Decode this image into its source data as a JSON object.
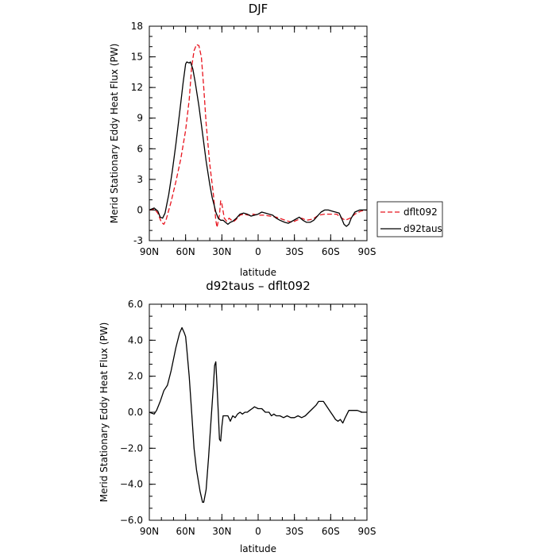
{
  "chart_data": [
    {
      "type": "line",
      "title": "DJF",
      "xlabel": "latitude",
      "ylabel": "Merid Stationary Eddy Heat Flux (PW)",
      "xlim": [
        90,
        -90
      ],
      "ylim": [
        -3,
        18
      ],
      "x_ticks": [
        90,
        60,
        30,
        0,
        -30,
        -60,
        -90
      ],
      "x_tick_labels": [
        "90N",
        "60N",
        "30N",
        "0",
        "30S",
        "60S",
        "90S"
      ],
      "y_ticks": [
        -3,
        0,
        3,
        6,
        9,
        12,
        15,
        18
      ],
      "y_tick_labels": [
        "-3",
        "0",
        "3",
        "6",
        "9",
        "12",
        "15",
        "18"
      ],
      "grid": false,
      "legend_position": "right",
      "series": [
        {
          "name": "dflt092",
          "color": "#e8141e",
          "style": "dashed",
          "points": [
            [
              90,
              0
            ],
            [
              86,
              0.1
            ],
            [
              83,
              -0.3
            ],
            [
              80,
              -1.2
            ],
            [
              78,
              -1.4
            ],
            [
              76,
              -0.9
            ],
            [
              72,
              0.8
            ],
            [
              68,
              2.8
            ],
            [
              64,
              5.0
            ],
            [
              60,
              7.8
            ],
            [
              57,
              10.8
            ],
            [
              55,
              14.0
            ],
            [
              53,
              15.6
            ],
            [
              51,
              16.2
            ],
            [
              49,
              16.1
            ],
            [
              47,
              15.0
            ],
            [
              45,
              12.0
            ],
            [
              43,
              8.5
            ],
            [
              40,
              4.5
            ],
            [
              37,
              1.5
            ],
            [
              35,
              -1.0
            ],
            [
              34,
              -1.7
            ],
            [
              32,
              -0.5
            ],
            [
              31,
              0.9
            ],
            [
              30,
              0.6
            ],
            [
              28,
              -0.8
            ],
            [
              26,
              -1.1
            ],
            [
              24,
              -0.8
            ],
            [
              22,
              -1.0
            ],
            [
              20,
              -1.1
            ],
            [
              18,
              -0.9
            ],
            [
              15,
              -0.5
            ],
            [
              12,
              -0.4
            ],
            [
              8,
              -0.5
            ],
            [
              4,
              -0.4
            ],
            [
              0,
              -0.5
            ],
            [
              -5,
              -0.5
            ],
            [
              -10,
              -0.6
            ],
            [
              -15,
              -0.7
            ],
            [
              -20,
              -0.9
            ],
            [
              -25,
              -1.1
            ],
            [
              -28,
              -1.2
            ],
            [
              -32,
              -1.0
            ],
            [
              -36,
              -0.8
            ],
            [
              -40,
              -1.0
            ],
            [
              -45,
              -0.9
            ],
            [
              -50,
              -0.5
            ],
            [
              -55,
              -0.4
            ],
            [
              -60,
              -0.4
            ],
            [
              -65,
              -0.4
            ],
            [
              -68,
              -0.7
            ],
            [
              -72,
              -1.0
            ],
            [
              -76,
              -0.8
            ],
            [
              -80,
              -0.4
            ],
            [
              -85,
              -0.1
            ],
            [
              -90,
              0
            ]
          ]
        },
        {
          "name": "d92taus",
          "color": "#000000",
          "style": "solid",
          "points": [
            [
              90,
              0
            ],
            [
              86,
              0.2
            ],
            [
              83,
              -0.1
            ],
            [
              81,
              -0.7
            ],
            [
              79,
              -0.8
            ],
            [
              77,
              -0.3
            ],
            [
              74,
              1.5
            ],
            [
              71,
              3.8
            ],
            [
              68,
              6.5
            ],
            [
              65,
              9.5
            ],
            [
              62,
              12.5
            ],
            [
              60,
              14.3
            ],
            [
              59,
              14.5
            ],
            [
              57,
              14.4
            ],
            [
              56,
              14.5
            ],
            [
              54,
              13.8
            ],
            [
              52,
              12.5
            ],
            [
              49,
              10.2
            ],
            [
              46,
              7.5
            ],
            [
              43,
              4.8
            ],
            [
              40,
              2.5
            ],
            [
              38,
              1.2
            ],
            [
              36,
              0.3
            ],
            [
              35,
              -0.2
            ],
            [
              33,
              -0.8
            ],
            [
              31,
              -1.0
            ],
            [
              29,
              -1.0
            ],
            [
              27,
              -1.2
            ],
            [
              25,
              -1.4
            ],
            [
              23,
              -1.2
            ],
            [
              21,
              -1.1
            ],
            [
              18,
              -0.8
            ],
            [
              15,
              -0.4
            ],
            [
              12,
              -0.3
            ],
            [
              9,
              -0.4
            ],
            [
              6,
              -0.6
            ],
            [
              3,
              -0.5
            ],
            [
              0,
              -0.4
            ],
            [
              -3,
              -0.2
            ],
            [
              -6,
              -0.3
            ],
            [
              -9,
              -0.4
            ],
            [
              -12,
              -0.5
            ],
            [
              -15,
              -0.8
            ],
            [
              -18,
              -1.0
            ],
            [
              -22,
              -1.2
            ],
            [
              -25,
              -1.3
            ],
            [
              -28,
              -1.1
            ],
            [
              -31,
              -0.9
            ],
            [
              -34,
              -0.7
            ],
            [
              -37,
              -1.0
            ],
            [
              -40,
              -1.2
            ],
            [
              -43,
              -1.2
            ],
            [
              -46,
              -1.0
            ],
            [
              -49,
              -0.6
            ],
            [
              -52,
              -0.2
            ],
            [
              -55,
              0.0
            ],
            [
              -58,
              0.0
            ],
            [
              -61,
              -0.1
            ],
            [
              -64,
              -0.2
            ],
            [
              -67,
              -0.3
            ],
            [
              -69,
              -0.8
            ],
            [
              -71,
              -1.4
            ],
            [
              -73,
              -1.6
            ],
            [
              -75,
              -1.4
            ],
            [
              -77,
              -0.8
            ],
            [
              -80,
              -0.2
            ],
            [
              -84,
              0.0
            ],
            [
              -90,
              0
            ]
          ]
        }
      ]
    },
    {
      "type": "line",
      "title": "d92taus – dflt092",
      "xlabel": "latitude",
      "ylabel": "Merid Stationary Eddy Heat Flux (PW)",
      "xlim": [
        90,
        -90
      ],
      "ylim": [
        -6,
        6
      ],
      "x_ticks": [
        90,
        60,
        30,
        0,
        -30,
        -60,
        -90
      ],
      "x_tick_labels": [
        "90N",
        "60N",
        "30N",
        "0",
        "30S",
        "60S",
        "90S"
      ],
      "y_ticks": [
        -6,
        -4,
        -2,
        0,
        2,
        4,
        6
      ],
      "y_tick_labels": [
        "−6.0",
        "−4.0",
        "−2.0",
        "0.0",
        "2.0",
        "4.0",
        "6.0"
      ],
      "grid": false,
      "series": [
        {
          "color": "#000000",
          "style": "solid",
          "points": [
            [
              90,
              0
            ],
            [
              86,
              -0.1
            ],
            [
              84,
              0.1
            ],
            [
              81,
              0.6
            ],
            [
              78,
              1.2
            ],
            [
              75,
              1.5
            ],
            [
              72,
              2.3
            ],
            [
              68,
              3.6
            ],
            [
              65,
              4.4
            ],
            [
              63,
              4.7
            ],
            [
              61,
              4.4
            ],
            [
              60,
              4.2
            ],
            [
              59,
              3.5
            ],
            [
              57,
              2.0
            ],
            [
              55,
              0.0
            ],
            [
              53,
              -2.0
            ],
            [
              51,
              -3.2
            ],
            [
              48,
              -4.4
            ],
            [
              46,
              -5.0
            ],
            [
              45,
              -5.0
            ],
            [
              43,
              -4.3
            ],
            [
              41,
              -2.5
            ],
            [
              39,
              -0.5
            ],
            [
              37,
              1.5
            ],
            [
              36,
              2.6
            ],
            [
              35,
              2.8
            ],
            [
              34,
              1.5
            ],
            [
              33,
              0.0
            ],
            [
              32,
              -1.5
            ],
            [
              31,
              -1.6
            ],
            [
              30,
              -0.8
            ],
            [
              29,
              -0.2
            ],
            [
              27,
              -0.2
            ],
            [
              25,
              -0.2
            ],
            [
              23,
              -0.5
            ],
            [
              21,
              -0.2
            ],
            [
              19,
              -0.3
            ],
            [
              17,
              -0.1
            ],
            [
              15,
              0.0
            ],
            [
              13,
              -0.1
            ],
            [
              11,
              0.0
            ],
            [
              9,
              0.0
            ],
            [
              7,
              0.1
            ],
            [
              5,
              0.2
            ],
            [
              3,
              0.3
            ],
            [
              0,
              0.2
            ],
            [
              -3,
              0.2
            ],
            [
              -6,
              0.0
            ],
            [
              -9,
              0.0
            ],
            [
              -11,
              -0.2
            ],
            [
              -13,
              -0.1
            ],
            [
              -15,
              -0.2
            ],
            [
              -18,
              -0.2
            ],
            [
              -21,
              -0.3
            ],
            [
              -24,
              -0.2
            ],
            [
              -27,
              -0.3
            ],
            [
              -30,
              -0.3
            ],
            [
              -33,
              -0.2
            ],
            [
              -36,
              -0.3
            ],
            [
              -39,
              -0.2
            ],
            [
              -42,
              0.0
            ],
            [
              -45,
              0.2
            ],
            [
              -48,
              0.4
            ],
            [
              -50,
              0.6
            ],
            [
              -52,
              0.6
            ],
            [
              -54,
              0.6
            ],
            [
              -56,
              0.4
            ],
            [
              -58,
              0.2
            ],
            [
              -60,
              0.0
            ],
            [
              -62,
              -0.2
            ],
            [
              -64,
              -0.4
            ],
            [
              -66,
              -0.5
            ],
            [
              -68,
              -0.4
            ],
            [
              -70,
              -0.6
            ],
            [
              -72,
              -0.3
            ],
            [
              -75,
              0.1
            ],
            [
              -79,
              0.1
            ],
            [
              -82,
              0.1
            ],
            [
              -86,
              0.0
            ],
            [
              -90,
              0
            ]
          ]
        }
      ]
    }
  ]
}
